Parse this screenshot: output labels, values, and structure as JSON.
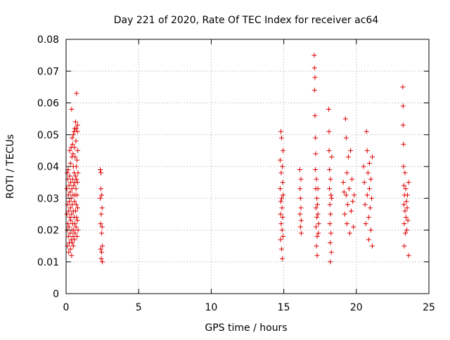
{
  "chart_data": {
    "type": "scatter",
    "title": "Day 221 of 2020, Rate Of TEC Index for receiver ac64",
    "xlabel": "GPS time / hours",
    "ylabel": "ROTI / TECUs",
    "xlim": [
      0,
      25
    ],
    "ylim": [
      0,
      0.08
    ],
    "xticks": [
      0,
      5,
      10,
      15,
      20,
      25
    ],
    "xtick_labels": [
      "0",
      "5",
      "10",
      "15",
      "20",
      "25"
    ],
    "yticks": [
      0,
      0.01,
      0.02,
      0.03,
      0.04,
      0.05,
      0.06,
      0.07,
      0.08
    ],
    "ytick_labels": [
      "0",
      "0.01",
      "0.02",
      "0.03",
      "0.04",
      "0.05",
      "0.06",
      "0.07",
      "0.08"
    ],
    "grid": true,
    "marker": "+",
    "marker_color": "#e00000",
    "series": [
      {
        "points": [
          [
            0.05,
            0.025
          ],
          [
            0.05,
            0.033
          ],
          [
            0.08,
            0.02
          ],
          [
            0.08,
            0.038
          ],
          [
            0.1,
            0.015
          ],
          [
            0.1,
            0.028
          ],
          [
            0.12,
            0.022
          ],
          [
            0.12,
            0.036
          ],
          [
            0.15,
            0.018
          ],
          [
            0.15,
            0.031
          ],
          [
            0.15,
            0.039
          ],
          [
            0.18,
            0.013
          ],
          [
            0.18,
            0.026
          ],
          [
            0.2,
            0.021
          ],
          [
            0.2,
            0.034
          ],
          [
            0.22,
            0.016
          ],
          [
            0.22,
            0.029
          ],
          [
            0.25,
            0.024
          ],
          [
            0.25,
            0.037
          ],
          [
            0.25,
            0.045
          ],
          [
            0.28,
            0.019
          ],
          [
            0.28,
            0.032
          ],
          [
            0.3,
            0.014
          ],
          [
            0.3,
            0.027
          ],
          [
            0.3,
            0.041
          ],
          [
            0.32,
            0.023
          ],
          [
            0.32,
            0.035
          ],
          [
            0.35,
            0.017
          ],
          [
            0.35,
            0.03
          ],
          [
            0.35,
            0.046
          ],
          [
            0.38,
            0.012
          ],
          [
            0.38,
            0.025
          ],
          [
            0.38,
            0.058
          ],
          [
            0.4,
            0.02
          ],
          [
            0.4,
            0.033
          ],
          [
            0.4,
            0.043
          ],
          [
            0.42,
            0.016
          ],
          [
            0.42,
            0.028
          ],
          [
            0.42,
            0.049
          ],
          [
            0.45,
            0.022
          ],
          [
            0.45,
            0.036
          ],
          [
            0.45,
            0.047
          ],
          [
            0.48,
            0.018
          ],
          [
            0.48,
            0.031
          ],
          [
            0.48,
            0.044
          ],
          [
            0.5,
            0.015
          ],
          [
            0.5,
            0.026
          ],
          [
            0.5,
            0.04
          ],
          [
            0.5,
            0.05
          ],
          [
            0.52,
            0.02
          ],
          [
            0.52,
            0.034
          ],
          [
            0.55,
            0.024
          ],
          [
            0.55,
            0.038
          ],
          [
            0.55,
            0.051
          ],
          [
            0.58,
            0.017
          ],
          [
            0.58,
            0.029
          ],
          [
            0.58,
            0.046
          ],
          [
            0.6,
            0.022
          ],
          [
            0.6,
            0.035
          ],
          [
            0.6,
            0.052
          ],
          [
            0.62,
            0.019
          ],
          [
            0.62,
            0.031
          ],
          [
            0.62,
            0.043
          ],
          [
            0.65,
            0.026
          ],
          [
            0.65,
            0.037
          ],
          [
            0.65,
            0.054
          ],
          [
            0.68,
            0.021
          ],
          [
            0.68,
            0.033
          ],
          [
            0.68,
            0.048
          ],
          [
            0.7,
            0.028
          ],
          [
            0.7,
            0.04
          ],
          [
            0.7,
            0.052
          ],
          [
            0.72,
            0.024
          ],
          [
            0.72,
            0.036
          ],
          [
            0.72,
            0.063
          ],
          [
            0.75,
            0.018
          ],
          [
            0.75,
            0.031
          ],
          [
            0.75,
            0.042
          ],
          [
            0.78,
            0.023
          ],
          [
            0.78,
            0.035
          ],
          [
            0.78,
            0.051
          ],
          [
            0.8,
            0.027
          ],
          [
            0.8,
            0.045
          ],
          [
            0.8,
            0.053
          ],
          [
            0.82,
            0.02
          ],
          [
            0.82,
            0.038
          ],
          [
            2.35,
            0.039
          ],
          [
            2.35,
            0.03
          ],
          [
            2.38,
            0.022
          ],
          [
            2.38,
            0.014
          ],
          [
            2.4,
            0.038
          ],
          [
            2.4,
            0.033
          ],
          [
            2.42,
            0.025
          ],
          [
            2.42,
            0.011
          ],
          [
            2.45,
            0.031
          ],
          [
            2.45,
            0.019
          ],
          [
            2.45,
            0.013
          ],
          [
            2.48,
            0.027
          ],
          [
            2.48,
            0.021
          ],
          [
            2.5,
            0.015
          ],
          [
            2.5,
            0.01
          ],
          [
            14.75,
            0.042
          ],
          [
            14.75,
            0.033
          ],
          [
            14.78,
            0.025
          ],
          [
            14.78,
            0.017
          ],
          [
            14.8,
            0.051
          ],
          [
            14.8,
            0.029
          ],
          [
            14.82,
            0.022
          ],
          [
            14.82,
            0.038
          ],
          [
            14.85,
            0.03
          ],
          [
            14.85,
            0.014
          ],
          [
            14.85,
            0.049
          ],
          [
            14.88,
            0.027
          ],
          [
            14.88,
            0.02
          ],
          [
            14.9,
            0.04
          ],
          [
            14.9,
            0.011
          ],
          [
            14.92,
            0.024
          ],
          [
            14.92,
            0.035
          ],
          [
            14.95,
            0.018
          ],
          [
            14.95,
            0.031
          ],
          [
            14.95,
            0.045
          ],
          [
            16.1,
            0.039
          ],
          [
            16.12,
            0.033
          ],
          [
            16.12,
            0.025
          ],
          [
            16.15,
            0.03
          ],
          [
            16.15,
            0.021
          ],
          [
            16.18,
            0.036
          ],
          [
            16.18,
            0.027
          ],
          [
            16.2,
            0.023
          ],
          [
            16.2,
            0.019
          ],
          [
            17.1,
            0.075
          ],
          [
            17.12,
            0.071
          ],
          [
            17.12,
            0.064
          ],
          [
            17.15,
            0.068
          ],
          [
            17.15,
            0.056
          ],
          [
            17.18,
            0.049
          ],
          [
            17.18,
            0.039
          ],
          [
            17.2,
            0.044
          ],
          [
            17.2,
            0.033
          ],
          [
            17.22,
            0.027
          ],
          [
            17.22,
            0.021
          ],
          [
            17.25,
            0.036
          ],
          [
            17.25,
            0.015
          ],
          [
            17.28,
            0.03
          ],
          [
            17.28,
            0.024
          ],
          [
            17.3,
            0.018
          ],
          [
            17.3,
            0.012
          ],
          [
            17.32,
            0.028
          ],
          [
            17.35,
            0.025
          ],
          [
            17.35,
            0.033
          ],
          [
            17.38,
            0.019
          ],
          [
            17.4,
            0.022
          ],
          [
            18.1,
            0.058
          ],
          [
            18.12,
            0.051
          ],
          [
            18.12,
            0.045
          ],
          [
            18.15,
            0.039
          ],
          [
            18.15,
            0.033
          ],
          [
            18.18,
            0.028
          ],
          [
            18.18,
            0.022
          ],
          [
            18.2,
            0.016
          ],
          [
            18.2,
            0.01
          ],
          [
            18.22,
            0.036
          ],
          [
            18.22,
            0.025
          ],
          [
            18.25,
            0.031
          ],
          [
            18.25,
            0.019
          ],
          [
            18.28,
            0.013
          ],
          [
            18.3,
            0.043
          ],
          [
            18.3,
            0.03
          ],
          [
            19.1,
            0.035
          ],
          [
            19.15,
            0.032
          ],
          [
            19.2,
            0.025
          ],
          [
            19.25,
            0.055
          ],
          [
            19.3,
            0.049
          ],
          [
            19.3,
            0.031
          ],
          [
            19.35,
            0.022
          ],
          [
            19.35,
            0.038
          ],
          [
            19.4,
            0.028
          ],
          [
            19.45,
            0.043
          ],
          [
            19.5,
            0.033
          ],
          [
            19.55,
            0.019
          ],
          [
            19.6,
            0.045
          ],
          [
            19.65,
            0.026
          ],
          [
            19.7,
            0.036
          ],
          [
            19.75,
            0.029
          ],
          [
            19.8,
            0.021
          ],
          [
            19.85,
            0.031
          ],
          [
            20.5,
            0.04
          ],
          [
            20.55,
            0.035
          ],
          [
            20.6,
            0.028
          ],
          [
            20.65,
            0.022
          ],
          [
            20.7,
            0.051
          ],
          [
            20.75,
            0.045
          ],
          [
            20.75,
            0.031
          ],
          [
            20.8,
            0.038
          ],
          [
            20.85,
            0.024
          ],
          [
            20.85,
            0.017
          ],
          [
            20.9,
            0.033
          ],
          [
            20.9,
            0.041
          ],
          [
            20.95,
            0.027
          ],
          [
            21.0,
            0.02
          ],
          [
            21.0,
            0.036
          ],
          [
            21.05,
            0.03
          ],
          [
            21.1,
            0.015
          ],
          [
            21.1,
            0.043
          ],
          [
            23.2,
            0.065
          ],
          [
            23.22,
            0.059
          ],
          [
            23.22,
            0.053
          ],
          [
            23.25,
            0.047
          ],
          [
            23.25,
            0.04
          ],
          [
            23.28,
            0.034
          ],
          [
            23.28,
            0.028
          ],
          [
            23.3,
            0.022
          ],
          [
            23.3,
            0.015
          ],
          [
            23.32,
            0.031
          ],
          [
            23.35,
            0.026
          ],
          [
            23.35,
            0.038
          ],
          [
            23.38,
            0.019
          ],
          [
            23.4,
            0.033
          ],
          [
            23.42,
            0.024
          ],
          [
            23.45,
            0.029
          ],
          [
            23.48,
            0.02
          ],
          [
            23.5,
            0.027
          ],
          [
            23.52,
            0.031
          ],
          [
            23.55,
            0.023
          ],
          [
            23.6,
            0.012
          ],
          [
            23.6,
            0.035
          ]
        ]
      }
    ]
  }
}
